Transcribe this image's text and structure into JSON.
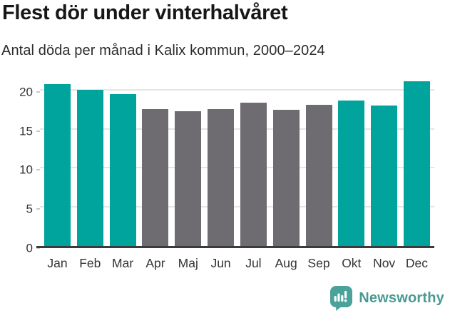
{
  "header": {
    "title": "Flest dör under vinterhalvåret",
    "subtitle": "Antal döda per månad i Kalix kommun, 2000–2024"
  },
  "chart_data": {
    "type": "bar",
    "title": "Flest dör under vinterhalvåret",
    "subtitle": "Antal döda per månad i Kalix kommun, 2000–2024",
    "categories": [
      "Jan",
      "Feb",
      "Mar",
      "Apr",
      "Maj",
      "Jun",
      "Jul",
      "Aug",
      "Sep",
      "Okt",
      "Nov",
      "Dec"
    ],
    "values": [
      20.7,
      20.0,
      19.4,
      17.5,
      17.2,
      17.5,
      18.3,
      17.4,
      18.1,
      18.6,
      18.0,
      21.1
    ],
    "highlighted_categories": [
      "Jan",
      "Feb",
      "Mar",
      "Okt",
      "Nov",
      "Dec"
    ],
    "highlight_color": "#00A49C",
    "default_color": "#6E6B71",
    "xlabel": "",
    "ylabel": "",
    "yticks": [
      0,
      5,
      10,
      15,
      20
    ],
    "ylim": [
      0,
      21.7
    ],
    "grid": true,
    "legend": false
  },
  "footer": {
    "brand_name": "Newsworthy",
    "logo_icon": "bar-chart-speech-bubble-icon"
  },
  "colors": {
    "highlight_teal": "#00A49C",
    "neutral_gray": "#6E6B71",
    "brand_teal": "#489A93",
    "axis_line": "#3B3B3B",
    "gridline": "#E5E5E5",
    "title_text": "#171717",
    "axis_text": "#333333"
  }
}
